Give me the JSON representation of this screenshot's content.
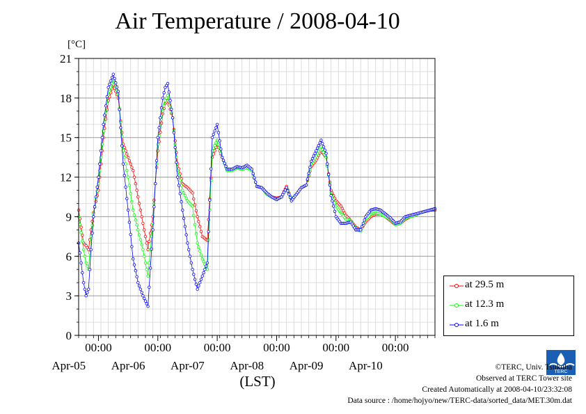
{
  "chart_data": {
    "type": "line",
    "title": "Air Temperature / 2008-04-10",
    "ylabel": "[°C]",
    "xlabel": "(LST)",
    "ylim": [
      0,
      21
    ],
    "xlim": [
      "2008-04-04 16:00",
      "2008-04-10 16:00"
    ],
    "yticks": [
      "0",
      "3",
      "6",
      "9",
      "12",
      "15",
      "18",
      "21"
    ],
    "xticks": [
      {
        "time": "2008-04-05 00:00",
        "label": "00:00",
        "day": "Apr-05"
      },
      {
        "time": "2008-04-06 00:00",
        "label": "00:00",
        "day": "Apr-06"
      },
      {
        "time": "2008-04-07 00:00",
        "label": "00:00",
        "day": "Apr-07"
      },
      {
        "time": "2008-04-08 00:00",
        "label": "00:00",
        "day": "Apr-08"
      },
      {
        "time": "2008-04-09 00:00",
        "label": "00:00",
        "day": "Apr-09"
      },
      {
        "time": "2008-04-10 00:00",
        "label": "00:00",
        "day": "Apr-10"
      }
    ],
    "grid": true,
    "legend_position": "bottom-right, outside plot",
    "series": [
      {
        "name": "at 29.5 m",
        "color": "#ff0000",
        "x": [
          "2008-04-04 16:00",
          "2008-04-04 17:00",
          "2008-04-04 18:00",
          "2008-04-04 19:00",
          "2008-04-04 20:00",
          "2008-04-04 21:00",
          "2008-04-04 22:00",
          "2008-04-05 00:00",
          "2008-04-05 02:00",
          "2008-04-05 04:00",
          "2008-04-05 06:00",
          "2008-04-05 08:00",
          "2008-04-05 10:00",
          "2008-04-05 12:00",
          "2008-04-05 14:00",
          "2008-04-05 16:00",
          "2008-04-05 18:00",
          "2008-04-05 20:00",
          "2008-04-05 22:00",
          "2008-04-06 00:00",
          "2008-04-06 02:00",
          "2008-04-06 03:00",
          "2008-04-06 04:00",
          "2008-04-06 06:00",
          "2008-04-06 08:00",
          "2008-04-06 10:00",
          "2008-04-06 12:00",
          "2008-04-06 14:00",
          "2008-04-06 16:00",
          "2008-04-06 18:00",
          "2008-04-06 20:00",
          "2008-04-06 22:00",
          "2008-04-07 00:00",
          "2008-04-07 02:00",
          "2008-04-07 04:00",
          "2008-04-07 06:00",
          "2008-04-07 08:00",
          "2008-04-07 10:00",
          "2008-04-07 12:00",
          "2008-04-07 14:00",
          "2008-04-07 16:00",
          "2008-04-07 18:00",
          "2008-04-07 20:00",
          "2008-04-07 22:00",
          "2008-04-08 00:00",
          "2008-04-08 02:00",
          "2008-04-08 04:00",
          "2008-04-08 06:00",
          "2008-04-08 08:00",
          "2008-04-08 10:00",
          "2008-04-08 12:00",
          "2008-04-08 14:00",
          "2008-04-08 16:00",
          "2008-04-08 18:00",
          "2008-04-08 20:00",
          "2008-04-08 22:00",
          "2008-04-09 00:00",
          "2008-04-09 02:00",
          "2008-04-09 04:00",
          "2008-04-09 06:00",
          "2008-04-09 08:00",
          "2008-04-09 10:00",
          "2008-04-09 12:00",
          "2008-04-09 14:00",
          "2008-04-09 16:00",
          "2008-04-09 18:00",
          "2008-04-09 20:00",
          "2008-04-09 22:00",
          "2008-04-10 00:00",
          "2008-04-10 02:00",
          "2008-04-10 04:00",
          "2008-04-10 06:00",
          "2008-04-10 08:00",
          "2008-04-10 10:00",
          "2008-04-10 12:00",
          "2008-04-10 14:00",
          "2008-04-10 16:00"
        ],
        "values": [
          9.5,
          8.2,
          7.0,
          6.8,
          6.5,
          8.0,
          9.3,
          11.0,
          15.0,
          17.8,
          19.0,
          18.0,
          14.5,
          13.5,
          12.5,
          10.5,
          8.5,
          6.5,
          9.0,
          14.0,
          16.8,
          17.6,
          17.8,
          16.5,
          13.0,
          11.5,
          11.2,
          10.8,
          9.0,
          7.5,
          7.2,
          13.5,
          14.5,
          13.5,
          12.6,
          12.6,
          12.7,
          12.6,
          12.8,
          12.5,
          11.3,
          11.2,
          10.8,
          10.5,
          10.4,
          10.5,
          11.3,
          10.3,
          10.7,
          11.2,
          11.4,
          12.8,
          13.3,
          14.0,
          13.5,
          11.0,
          10.2,
          9.8,
          9.1,
          8.7,
          8.2,
          8.0,
          8.6,
          9.0,
          9.2,
          9.2,
          9.0,
          8.7,
          8.4,
          8.5,
          8.8,
          9.0,
          9.1,
          9.3,
          9.4,
          9.5,
          9.5
        ]
      },
      {
        "name": "at 12.3 m",
        "color": "#00ff00",
        "x": [
          "2008-04-04 16:00",
          "2008-04-04 17:00",
          "2008-04-04 18:00",
          "2008-04-04 19:00",
          "2008-04-04 20:00",
          "2008-04-04 21:00",
          "2008-04-04 22:00",
          "2008-04-05 00:00",
          "2008-04-05 02:00",
          "2008-04-05 04:00",
          "2008-04-05 06:00",
          "2008-04-05 08:00",
          "2008-04-05 10:00",
          "2008-04-05 12:00",
          "2008-04-05 14:00",
          "2008-04-05 16:00",
          "2008-04-05 18:00",
          "2008-04-05 20:00",
          "2008-04-05 22:00",
          "2008-04-06 00:00",
          "2008-04-06 02:00",
          "2008-04-06 03:00",
          "2008-04-06 04:00",
          "2008-04-06 06:00",
          "2008-04-06 08:00",
          "2008-04-06 10:00",
          "2008-04-06 12:00",
          "2008-04-06 14:00",
          "2008-04-06 16:00",
          "2008-04-06 18:00",
          "2008-04-06 20:00",
          "2008-04-06 22:00",
          "2008-04-07 00:00",
          "2008-04-07 02:00",
          "2008-04-07 04:00",
          "2008-04-07 06:00",
          "2008-04-07 08:00",
          "2008-04-07 10:00",
          "2008-04-07 12:00",
          "2008-04-07 14:00",
          "2008-04-07 16:00",
          "2008-04-07 18:00",
          "2008-04-07 20:00",
          "2008-04-07 22:00",
          "2008-04-08 00:00",
          "2008-04-08 02:00",
          "2008-04-08 04:00",
          "2008-04-08 06:00",
          "2008-04-08 08:00",
          "2008-04-08 10:00",
          "2008-04-08 12:00",
          "2008-04-08 14:00",
          "2008-04-08 16:00",
          "2008-04-08 18:00",
          "2008-04-08 20:00",
          "2008-04-08 22:00",
          "2008-04-09 00:00",
          "2008-04-09 02:00",
          "2008-04-09 04:00",
          "2008-04-09 06:00",
          "2008-04-09 08:00",
          "2008-04-09 10:00",
          "2008-04-09 12:00",
          "2008-04-09 14:00",
          "2008-04-09 16:00",
          "2008-04-09 18:00",
          "2008-04-09 20:00",
          "2008-04-09 22:00",
          "2008-04-10 00:00",
          "2008-04-10 02:00",
          "2008-04-10 04:00",
          "2008-04-10 06:00",
          "2008-04-10 08:00",
          "2008-04-10 10:00",
          "2008-04-10 12:00",
          "2008-04-10 14:00",
          "2008-04-10 16:00"
        ],
        "values": [
          9.0,
          7.8,
          6.5,
          5.5,
          5.0,
          7.5,
          9.2,
          11.5,
          15.5,
          18.2,
          19.4,
          18.3,
          14.0,
          12.0,
          9.5,
          8.0,
          6.5,
          4.5,
          8.5,
          14.5,
          17.0,
          17.8,
          18.2,
          16.5,
          12.5,
          11.0,
          10.2,
          9.8,
          7.0,
          5.8,
          5.0,
          14.0,
          14.8,
          13.5,
          12.5,
          12.5,
          12.7,
          12.6,
          12.7,
          12.5,
          11.3,
          11.2,
          10.7,
          10.5,
          10.3,
          10.5,
          11.2,
          10.3,
          10.7,
          11.2,
          11.4,
          13.0,
          13.6,
          14.3,
          13.5,
          10.8,
          9.8,
          9.3,
          8.8,
          8.7,
          8.1,
          7.9,
          8.8,
          9.2,
          9.3,
          9.2,
          9.0,
          8.8,
          8.4,
          8.5,
          8.9,
          9.0,
          9.1,
          9.3,
          9.4,
          9.5,
          9.6
        ]
      },
      {
        "name": "at 1.6 m",
        "color": "#0000ff",
        "x": [
          "2008-04-04 16:00",
          "2008-04-04 17:00",
          "2008-04-04 18:00",
          "2008-04-04 19:00",
          "2008-04-04 20:00",
          "2008-04-04 21:00",
          "2008-04-04 22:00",
          "2008-04-05 00:00",
          "2008-04-05 02:00",
          "2008-04-05 04:00",
          "2008-04-05 06:00",
          "2008-04-05 08:00",
          "2008-04-05 10:00",
          "2008-04-05 12:00",
          "2008-04-05 14:00",
          "2008-04-05 16:00",
          "2008-04-05 18:00",
          "2008-04-05 20:00",
          "2008-04-05 22:00",
          "2008-04-06 00:00",
          "2008-04-06 02:00",
          "2008-04-06 03:00",
          "2008-04-06 04:00",
          "2008-04-06 06:00",
          "2008-04-06 08:00",
          "2008-04-06 10:00",
          "2008-04-06 12:00",
          "2008-04-06 14:00",
          "2008-04-06 16:00",
          "2008-04-06 18:00",
          "2008-04-06 20:00",
          "2008-04-06 22:00",
          "2008-04-07 00:00",
          "2008-04-07 02:00",
          "2008-04-07 04:00",
          "2008-04-07 06:00",
          "2008-04-07 08:00",
          "2008-04-07 10:00",
          "2008-04-07 12:00",
          "2008-04-07 14:00",
          "2008-04-07 16:00",
          "2008-04-07 18:00",
          "2008-04-07 20:00",
          "2008-04-07 22:00",
          "2008-04-08 00:00",
          "2008-04-08 02:00",
          "2008-04-08 04:00",
          "2008-04-08 06:00",
          "2008-04-08 08:00",
          "2008-04-08 10:00",
          "2008-04-08 12:00",
          "2008-04-08 14:00",
          "2008-04-08 16:00",
          "2008-04-08 18:00",
          "2008-04-08 20:00",
          "2008-04-08 22:00",
          "2008-04-09 00:00",
          "2008-04-09 02:00",
          "2008-04-09 04:00",
          "2008-04-09 06:00",
          "2008-04-09 08:00",
          "2008-04-09 10:00",
          "2008-04-09 12:00",
          "2008-04-09 14:00",
          "2008-04-09 16:00",
          "2008-04-09 18:00",
          "2008-04-09 20:00",
          "2008-04-09 22:00",
          "2008-04-10 00:00",
          "2008-04-10 02:00",
          "2008-04-10 04:00",
          "2008-04-10 06:00",
          "2008-04-10 08:00",
          "2008-04-10 10:00",
          "2008-04-10 12:00",
          "2008-04-10 14:00",
          "2008-04-10 16:00"
        ],
        "values": [
          7.0,
          5.5,
          4.0,
          3.0,
          3.5,
          6.5,
          9.0,
          12.0,
          16.0,
          18.8,
          19.8,
          18.5,
          13.0,
          9.5,
          5.8,
          4.0,
          3.0,
          2.2,
          8.0,
          15.0,
          18.0,
          18.8,
          19.1,
          16.5,
          12.0,
          9.5,
          7.0,
          5.0,
          3.5,
          4.5,
          5.5,
          15.0,
          16.0,
          13.5,
          12.6,
          12.6,
          12.8,
          12.7,
          12.9,
          12.6,
          11.3,
          11.2,
          10.8,
          10.5,
          10.3,
          10.5,
          11.2,
          10.2,
          10.7,
          11.2,
          11.4,
          13.2,
          14.0,
          14.8,
          13.8,
          10.6,
          9.0,
          8.5,
          8.5,
          8.6,
          8.0,
          8.0,
          9.0,
          9.5,
          9.6,
          9.5,
          9.2,
          8.9,
          8.5,
          8.6,
          9.0,
          9.1,
          9.2,
          9.3,
          9.4,
          9.5,
          9.6
        ]
      }
    ]
  },
  "legend": {
    "items": [
      {
        "label": "at 29.5 m",
        "color": "#ff0000"
      },
      {
        "label": "at 12.3 m",
        "color": "#00ff00"
      },
      {
        "label": "at 1.6 m",
        "color": "#0000ff"
      }
    ]
  },
  "footer": {
    "copyright": "©TERC, Univ. Tsukuba",
    "observed": "Observed at TERC Tower site",
    "created": "Created Automatically at 2008-04-10/23:32:08",
    "source": "Data source : /home/hojyo/new/TERC-data/sorted_data/MET.30m.dat"
  },
  "logo": {
    "text": "TERC"
  }
}
